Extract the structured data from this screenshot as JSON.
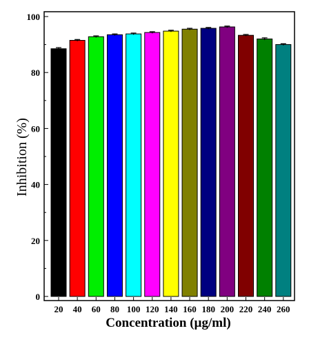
{
  "chart_data": {
    "type": "bar",
    "xlabel": "Concentration (µg/ml)",
    "ylabel": "Inhibition (%)",
    "ylim": [
      0,
      100
    ],
    "yticks": [
      0,
      20,
      40,
      60,
      80,
      100
    ],
    "grid": false,
    "categories": [
      "20",
      "40",
      "60",
      "80",
      "100",
      "120",
      "140",
      "160",
      "180",
      "200",
      "220",
      "240",
      "260"
    ],
    "values": [
      88.5,
      91.5,
      92.8,
      93.5,
      93.8,
      94.3,
      94.8,
      95.5,
      95.8,
      96.3,
      93.3,
      92.0,
      90.0
    ],
    "errors": [
      0.4,
      0.3,
      0.3,
      0.3,
      0.3,
      0.3,
      0.3,
      0.3,
      0.3,
      0.3,
      0.3,
      0.4,
      0.3
    ],
    "colors": [
      "#000000",
      "#ff0000",
      "#00ee00",
      "#0000ff",
      "#00ffff",
      "#ff00ff",
      "#ffff00",
      "#808000",
      "#000080",
      "#800080",
      "#800000",
      "#008000",
      "#008080"
    ]
  }
}
